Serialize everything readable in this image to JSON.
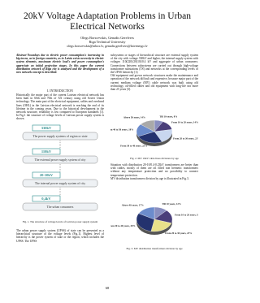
{
  "header": {
    "title": "20kV Voltage Adaptation Problems in Urban Electrical Networks",
    "authors": "Olegs Borscevskis, Genadis Gerelvers",
    "affiliation": "Riga Technical University",
    "email": "olegs.borscevskis@inbox.lv, genadis.gerelvers@latvenergo.lv"
  },
  "left_column": {
    "abstract": "Abstract-Nowadays due to electric power consumption's increasing in big towns, as in foreign countries, as in Latvia exists necessity in electric system elements, maximum electric load's and power consumption's appreciate on initial projection stages. In this paper the current distribution network of Riga city is analyzed and the development of a new network concept is described.",
    "intro_heading": "I. INTRODUCTION",
    "intro_text": "Historically the major part of the current Latvian electrical network has been built in 60th and 70th of XX century using old Soviet Union technology. The main part of the electrical equipment, cables and overhead lines (OHL) in the Latvian electrical network is reaching the end of its lifetime in the coming years. Due to the historical development in the network structure, reliability is low compared to European standards [1]. In Fig.1 the structure of voltage levels of Latvian power supply system is shown.",
    "figure1": {
      "levels": [
        {
          "voltage": "330kV",
          "label": "The power supply systems of region or state"
        },
        {
          "voltage": "110kV",
          "label": "The external power supply system of city"
        },
        {
          "voltage": "20-10kV",
          "label": "The internal power supply system of city"
        },
        {
          "voltage": "0,4kV",
          "label": "The urban consumers"
        }
      ],
      "caption": "Fig. 1. The structure of voltage levels of Latvian power supply system"
    },
    "text_after": "The urban power supply system (UPSS) of state can be presented as a hierarchical structure of the voltage levels (Fig.1). Highest level of hierarchy is the power system of state or the region, which includes the UPSS. The UPSS"
  },
  "right_column": {
    "text1": "subsystems or stages of hierarchical structure are external supply system of the city with voltage 330kV and higher, the internal supply system with voltages 110(220)/20(10)/0.4 kV and aggregate of urban consumers. Connections between subsystems are carried out through high-voltage transformer substations (TS) and networks at the corresponding levels of the UPSS hierarchy [1].\nOld equipment and grown network structures make the maintenance and operation of the network difficult and expensive, because major part of the current medium voltage (MV) cable network was built using old technology, oil-filled cables and old equipment with long-life not more than 25 years [3].",
    "figure2": {
      "slices": [
        {
          "label": "Till 10 years, 8%",
          "value": 8,
          "color": "#8a8fc0"
        },
        {
          "label": "From 10 to 20 years, 14%",
          "value": 14,
          "color": "#4a3f7a"
        },
        {
          "label": "From 20 to 30 years, 21%",
          "value": 21,
          "color": "#c9d7ef"
        },
        {
          "label": "From 30 to 40 years, 25%",
          "value": 25,
          "color": "#24326e"
        },
        {
          "label": "From 40 to 50 years, 18%",
          "value": 18,
          "color": "#6c8ccc"
        },
        {
          "label": "Above 50 years, 14%",
          "value": 14,
          "color": "#a9a9a9"
        }
      ],
      "caption": "Fig. 2. MV 10kV cable lines divisions by age"
    },
    "text2": "Situation with distribution 20-10/0.4-0.23kV transformers are better than with cables, mostly of them are oil filled non hermetic transformers without any temperature protection and no possibility to connect temperature protection.\nMV distribution transformers division by age is illustrated in Fig.3.",
    "figure3": {
      "slices": [
        {
          "label": "Till 10 years, 12%",
          "value": 12,
          "color": "#8a8fc0"
        },
        {
          "label": "From 10 to 20 years, 18%",
          "value": 18,
          "color": "#4a3f7a"
        },
        {
          "label": "From 20 to 30 years, 23%",
          "value": 23,
          "color": "#e8e08a"
        },
        {
          "label": "From 30 to 40 years, 30%",
          "value": 30,
          "color": "#24326e"
        },
        {
          "label": "Above 40 years, 17%",
          "value": 17,
          "color": "#6c8ccc"
        }
      ],
      "caption": "Fig. 3. MV distribution transformers division by age"
    }
  },
  "page_number": "68"
}
